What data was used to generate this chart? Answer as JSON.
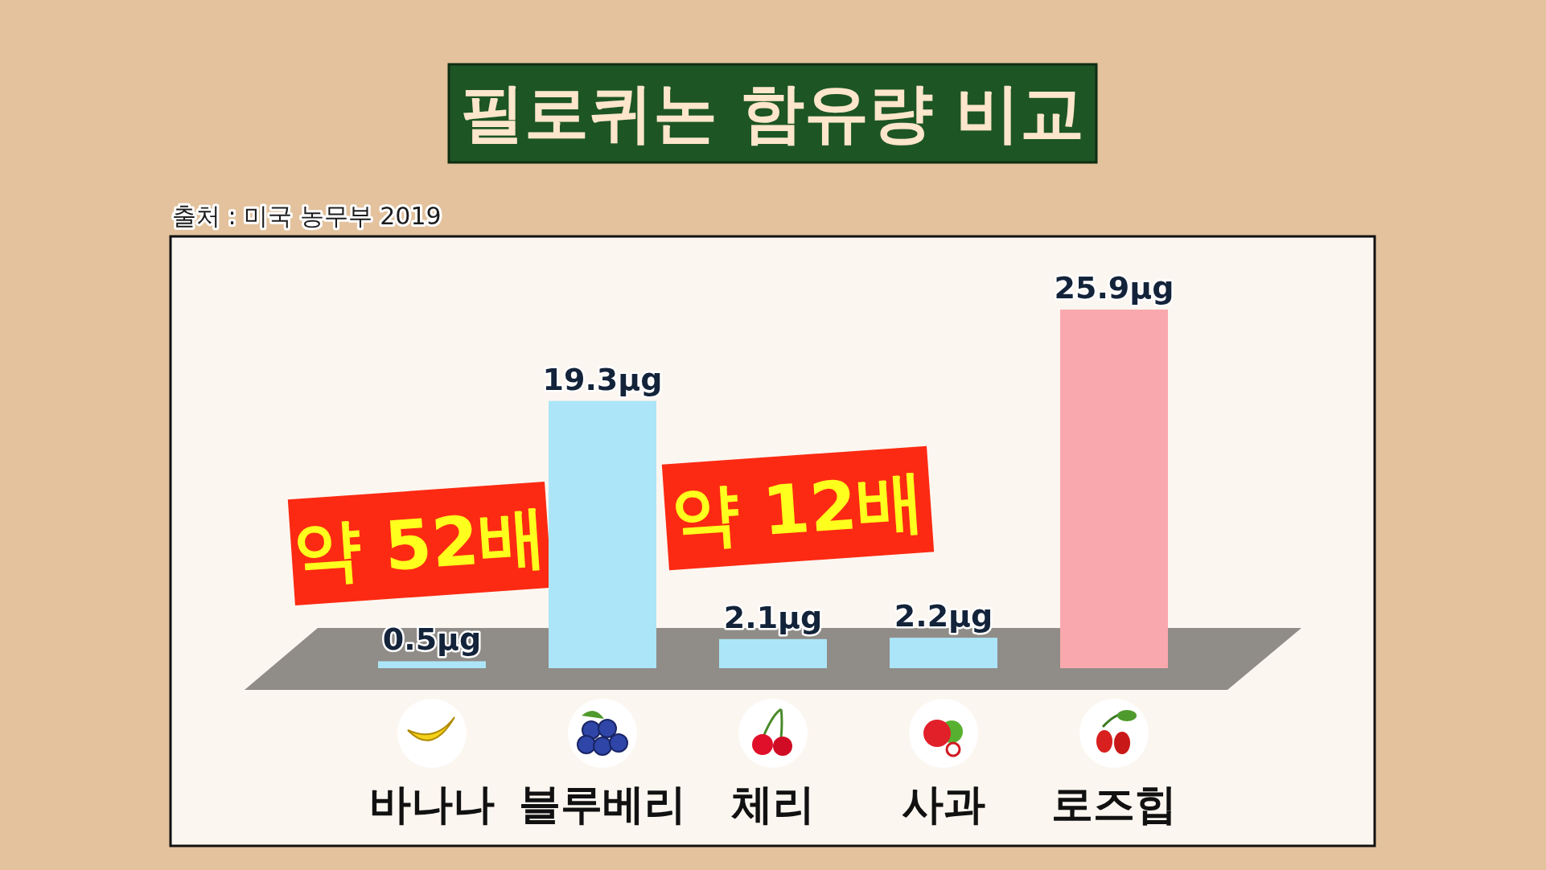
{
  "chart_data": {
    "type": "bar",
    "title": "필로퀴논 함유량 비교",
    "categories": [
      "바나나",
      "블루베리",
      "체리",
      "사과",
      "로즈힙"
    ],
    "values": [
      0.5,
      19.3,
      2.1,
      2.2,
      25.9
    ],
    "colors": [
      "#ace5f8",
      "#ace5f8",
      "#ace5f8",
      "#ace5f8",
      "#f9a8ae"
    ],
    "value_labels": [
      "0.5μg",
      "19.3μg",
      "2.1μg",
      "2.2μg",
      "25.9μg"
    ],
    "annotations": [
      "출처 : 미국 농무부 2019",
      "약 52배",
      "약 12배"
    ]
  }
}
